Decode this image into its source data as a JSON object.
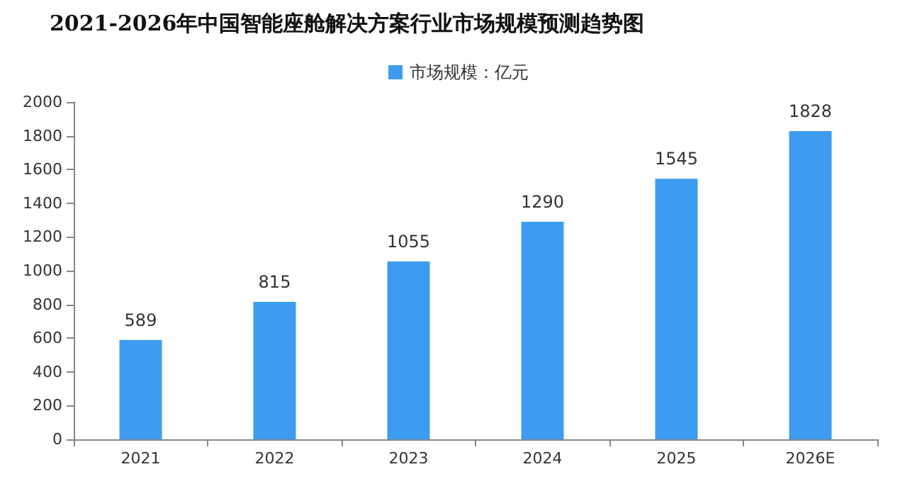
{
  "chart_data": {
    "type": "bar",
    "title": "2021-2026年中国智能座舱解决方案行业市场规模预测趋势图",
    "categories": [
      "2021",
      "2022",
      "2023",
      "2024",
      "2025",
      "2026E"
    ],
    "series": [
      {
        "name": "市场规模：亿元",
        "color": "#3d9cf0",
        "values": [
          589,
          815,
          1055,
          1290,
          1545,
          1828
        ]
      }
    ],
    "ylim": [
      0,
      2000
    ],
    "yticks": [
      0,
      200,
      400,
      600,
      800,
      1000,
      1200,
      1400,
      1600,
      1800,
      2000
    ],
    "grid": false,
    "legend": "top",
    "data_labels": true
  }
}
